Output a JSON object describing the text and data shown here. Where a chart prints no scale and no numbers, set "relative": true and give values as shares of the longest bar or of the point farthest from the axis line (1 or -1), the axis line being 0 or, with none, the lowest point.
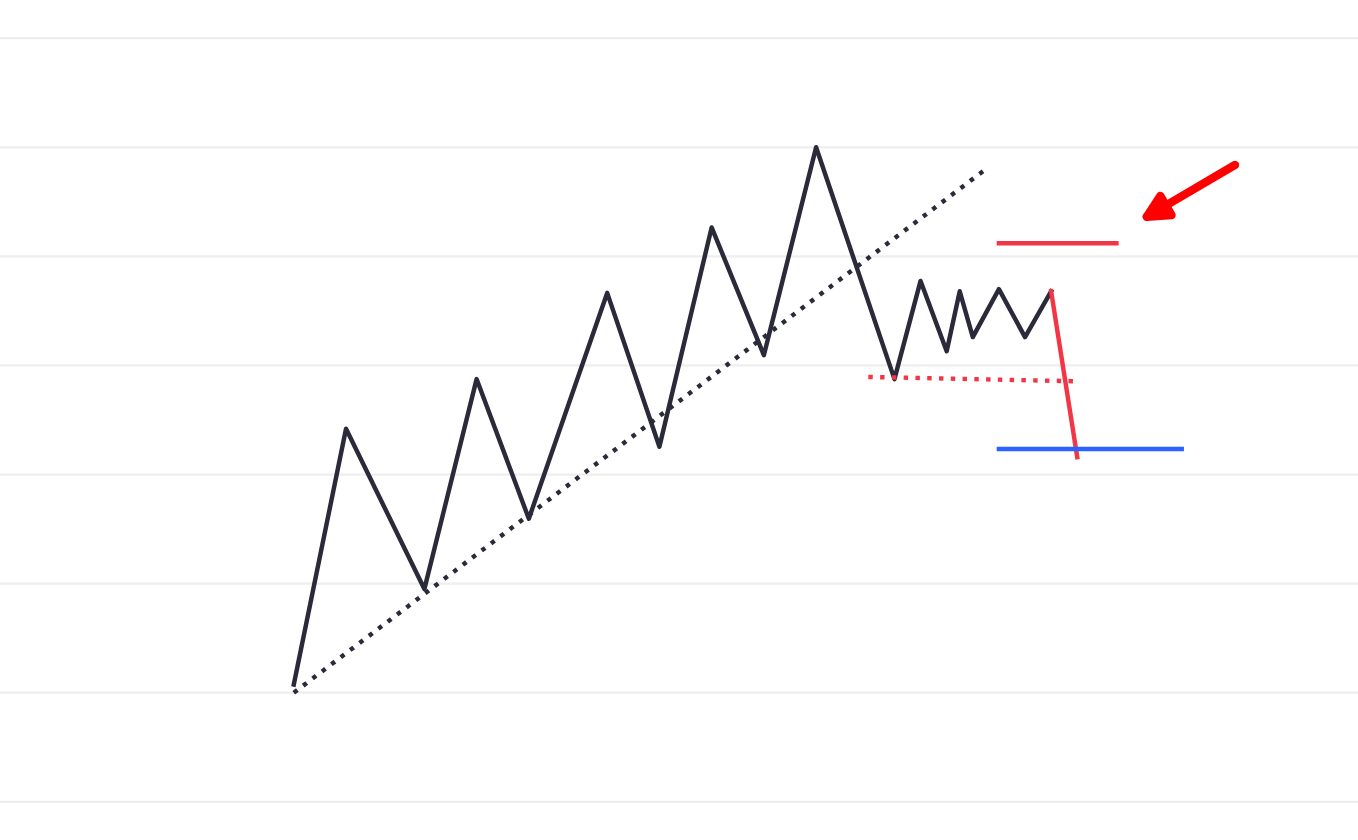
{
  "chart_data": {
    "type": "line",
    "relative": true,
    "grid": "y",
    "categories": [
      null,
      null,
      null,
      null,
      null,
      null,
      null,
      null,
      null,
      null,
      null,
      null,
      null,
      null,
      null,
      null,
      null,
      null,
      null,
      null,
      null,
      null,
      null,
      null,
      null,
      null,
      null,
      null,
      null,
      null,
      null,
      null,
      null,
      null,
      null,
      null,
      null,
      null,
      null,
      null,
      null,
      null,
      null,
      null,
      null,
      null,
      null,
      null,
      null,
      null,
      null,
      null,
      null,
      null,
      null,
      null,
      null,
      null,
      null,
      null,
      null,
      null,
      null,
      null,
      null,
      null,
      null,
      null,
      null,
      null,
      null,
      null,
      null,
      null,
      null,
      null,
      null,
      null,
      null,
      null,
      null,
      null,
      null,
      null,
      null,
      null,
      null,
      null,
      null,
      null,
      null,
      null,
      null,
      null,
      null,
      null,
      null,
      null,
      null,
      null,
      null,
      null,
      null,
      null
    ],
    "series": [
      {
        "color": "#2a2a3a",
        "line_style": "solid",
        "values": [
          null,
          null,
          null,
          null,
          null,
          null,
          null,
          null,
          null,
          null,
          null,
          null,
          null,
          null,
          null,
          null,
          null,
          null,
          null,
          null,
          null,
          null,
          0.015,
          null,
          null,
          null,
          0.484,
          null,
          null,
          null,
          null,
          null,
          0.19,
          null,
          null,
          null,
          0.575,
          null,
          null,
          null,
          0.319,
          null,
          null,
          null,
          null,
          null,
          0.733,
          null,
          null,
          null,
          0.451,
          null,
          null,
          null,
          0.853,
          null,
          null,
          null,
          0.619,
          null,
          null,
          null,
          1,
          null,
          null,
          null,
          null,
          null,
          0.575,
          null,
          0.755,
          null,
          0.626,
          0.736,
          0.652,
          null,
          0.74,
          null,
          0.652,
          null,
          0.736,
          null,
          null,
          null,
          null,
          null,
          null,
          null,
          null,
          null,
          null,
          null,
          null,
          null,
          null,
          null,
          null,
          null,
          null,
          null,
          null,
          null,
          null,
          null
        ]
      },
      {
        "color": "#2a2a3a",
        "line_style": "dotted",
        "values": [
          null,
          null,
          null,
          null,
          null,
          null,
          null,
          null,
          null,
          null,
          null,
          null,
          null,
          null,
          null,
          null,
          null,
          null,
          null,
          null,
          null,
          null,
          0,
          null,
          null,
          null,
          null,
          null,
          null,
          null,
          null,
          null,
          null,
          null,
          null,
          null,
          null,
          null,
          null,
          null,
          null,
          null,
          null,
          null,
          null,
          null,
          null,
          null,
          null,
          null,
          null,
          null,
          null,
          null,
          null,
          null,
          null,
          null,
          null,
          null,
          null,
          null,
          null,
          null,
          null,
          null,
          null,
          null,
          null,
          null,
          null,
          null,
          null,
          null,
          null,
          0.96,
          null,
          null,
          null,
          null,
          null,
          null,
          null,
          null,
          null,
          null,
          null,
          null,
          null,
          null,
          null,
          null,
          null,
          null,
          null,
          null,
          null,
          null,
          null,
          null,
          null,
          null,
          null,
          null
        ]
      },
      {
        "color": "#f23645",
        "line_style": "solid",
        "values": [
          null,
          null,
          null,
          null,
          null,
          null,
          null,
          null,
          null,
          null,
          null,
          null,
          null,
          null,
          null,
          null,
          null,
          null,
          null,
          null,
          null,
          null,
          null,
          null,
          null,
          null,
          null,
          null,
          null,
          null,
          null,
          null,
          null,
          null,
          null,
          null,
          null,
          null,
          null,
          null,
          null,
          null,
          null,
          null,
          null,
          null,
          null,
          null,
          null,
          null,
          null,
          null,
          null,
          null,
          null,
          null,
          null,
          null,
          null,
          null,
          null,
          null,
          null,
          null,
          null,
          null,
          null,
          null,
          null,
          null,
          null,
          null,
          null,
          null,
          null,
          null,
          null,
          null,
          null,
          null,
          0.736,
          null,
          0.432,
          null,
          null,
          null,
          null,
          null,
          null,
          null,
          null,
          null,
          null,
          null,
          null,
          null,
          null,
          null,
          null,
          null,
          null,
          null,
          null,
          null
        ]
      },
      {
        "color": "#f23645",
        "line_style": "solid",
        "values": [
          null,
          null,
          null,
          null,
          null,
          null,
          null,
          null,
          null,
          null,
          null,
          null,
          null,
          null,
          null,
          null,
          null,
          null,
          null,
          null,
          null,
          null,
          null,
          null,
          null,
          null,
          null,
          null,
          null,
          null,
          null,
          null,
          null,
          null,
          null,
          null,
          null,
          null,
          null,
          null,
          null,
          null,
          null,
          null,
          null,
          null,
          null,
          null,
          null,
          null,
          null,
          null,
          null,
          null,
          null,
          null,
          null,
          null,
          null,
          null,
          null,
          null,
          null,
          null,
          null,
          null,
          null,
          null,
          null,
          null,
          null,
          null,
          null,
          null,
          null,
          null,
          0.824,
          null,
          null,
          null,
          null,
          null,
          null,
          null,
          null,
          0.824,
          null,
          null,
          null,
          null,
          null,
          null,
          null,
          null,
          null,
          null,
          null,
          null,
          null,
          null,
          null,
          null,
          null,
          null
        ]
      },
      {
        "color": "#2962ff",
        "line_style": "solid",
        "values": [
          null,
          null,
          null,
          null,
          null,
          null,
          null,
          null,
          null,
          null,
          null,
          null,
          null,
          null,
          null,
          null,
          null,
          null,
          null,
          null,
          null,
          null,
          null,
          null,
          null,
          null,
          null,
          null,
          null,
          null,
          null,
          null,
          null,
          null,
          null,
          null,
          null,
          null,
          null,
          null,
          null,
          null,
          null,
          null,
          null,
          null,
          null,
          null,
          null,
          null,
          null,
          null,
          null,
          null,
          null,
          null,
          null,
          null,
          null,
          null,
          null,
          null,
          null,
          null,
          null,
          null,
          null,
          null,
          null,
          null,
          null,
          null,
          null,
          null,
          null,
          null,
          0.447,
          null,
          null,
          null,
          null,
          null,
          null,
          null,
          null,
          null,
          null,
          null,
          null,
          null,
          0.447,
          null,
          null,
          null,
          null,
          null,
          null,
          null,
          null,
          null,
          null,
          null,
          null,
          null
        ]
      },
      {
        "color": "#f23645",
        "line_style": "dotted",
        "values": [
          null,
          null,
          null,
          null,
          null,
          null,
          null,
          null,
          null,
          null,
          null,
          null,
          null,
          null,
          null,
          null,
          null,
          null,
          null,
          null,
          null,
          null,
          null,
          null,
          null,
          null,
          null,
          null,
          null,
          null,
          null,
          null,
          null,
          null,
          null,
          null,
          null,
          null,
          null,
          null,
          null,
          null,
          null,
          null,
          null,
          null,
          null,
          null,
          null,
          null,
          null,
          null,
          null,
          null,
          null,
          null,
          null,
          null,
          null,
          null,
          null,
          null,
          null,
          null,
          null,
          null,
          0.579,
          null,
          null,
          null,
          null,
          null,
          null,
          null,
          null,
          null,
          null,
          null,
          null,
          null,
          null,
          null,
          0.571,
          null,
          null,
          null,
          null,
          null,
          null,
          null,
          null,
          null,
          null,
          null,
          null,
          null,
          null,
          null,
          null,
          null,
          null,
          null,
          null,
          null
        ]
      }
    ]
  }
}
